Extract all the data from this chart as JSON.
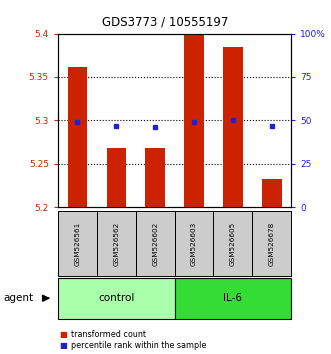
{
  "title": "GDS3773 / 10555197",
  "samples": [
    "GSM526561",
    "GSM526562",
    "GSM526602",
    "GSM526603",
    "GSM526605",
    "GSM526678"
  ],
  "red_values": [
    5.362,
    5.268,
    5.268,
    5.4,
    5.385,
    5.232
  ],
  "blue_values_pct": [
    49,
    47,
    46,
    49,
    50,
    47
  ],
  "ylim_left": [
    5.2,
    5.4
  ],
  "ylim_right": [
    0,
    100
  ],
  "yticks_left": [
    5.2,
    5.25,
    5.3,
    5.35,
    5.4
  ],
  "ytick_labels_left": [
    "5.2",
    "5.25",
    "5.3",
    "5.35",
    "5.4"
  ],
  "yticks_right": [
    0,
    25,
    50,
    75,
    100
  ],
  "ytick_labels_right": [
    "0",
    "25",
    "50",
    "75",
    "100%"
  ],
  "bar_bottom": 5.2,
  "groups": [
    {
      "label": "control",
      "indices": [
        0,
        1,
        2
      ],
      "color": "#AAFFAA"
    },
    {
      "label": "IL-6",
      "indices": [
        3,
        4,
        5
      ],
      "color": "#33DD33"
    }
  ],
  "agent_label": "agent",
  "red_color": "#CC2200",
  "blue_color": "#2222CC",
  "bar_width": 0.5,
  "background_color": "#ffffff",
  "legend_red": "transformed count",
  "legend_blue": "percentile rank within the sample",
  "gray_box_color": "#CCCCCC"
}
